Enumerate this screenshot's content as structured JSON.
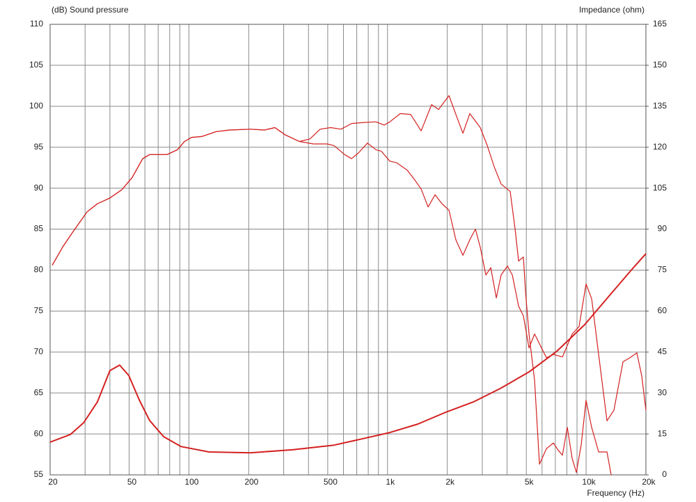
{
  "chart_data": {
    "type": "line",
    "xscale": "log",
    "grid": true,
    "y_label": "(dB)  Sound pressure",
    "y2_label": "Impedance  (ohm)",
    "x_label": "Frequency  (Hz)",
    "xlim": [
      20,
      20000
    ],
    "xticks": [
      20,
      50,
      100,
      200,
      500,
      {
        "value": 1000,
        "label": "1k"
      },
      {
        "value": 2000,
        "label": "2k"
      },
      {
        "value": 5000,
        "label": "5k"
      },
      {
        "value": 10000,
        "label": "10k"
      },
      {
        "value": 20000,
        "label": "20k"
      }
    ],
    "xminor": [
      30,
      40,
      60,
      70,
      80,
      90,
      300,
      400,
      600,
      700,
      800,
      900,
      3000,
      4000,
      6000,
      7000,
      8000,
      9000
    ],
    "ylim": [
      55,
      110
    ],
    "yticks": [
      55,
      60,
      65,
      70,
      75,
      80,
      85,
      90,
      95,
      100,
      105,
      110
    ],
    "y2lim": [
      0,
      165
    ],
    "y2ticks": [
      0,
      15,
      30,
      45,
      60,
      75,
      90,
      105,
      120,
      135,
      150,
      165
    ],
    "series": [
      {
        "color": "#d42020",
        "x": [
          20.5,
          23.1,
          26.1,
          30.7,
          34.6,
          40,
          45.9,
          51.8,
          58.5,
          63.4,
          77.6,
          87.6,
          95,
          103,
          116,
          137,
          160,
          204,
          240,
          271,
          306,
          360,
          406,
          458,
          517,
          584,
          659,
          744,
          874,
          963,
          1027,
          1159,
          1308,
          1477,
          1667,
          1807,
          2039,
          2210,
          2396,
          2597,
          2931,
          3178,
          3445,
          3734,
          4147,
          4389,
          4570,
          4834,
          4954,
          5158,
          5504,
          5824,
          6311,
          6843,
          7239,
          7598,
          8041,
          8507,
          8928,
          9450,
          9994,
          10666,
          11562,
          12739,
          13369
        ],
        "values": [
          80.6,
          82.8,
          84.7,
          87.1,
          88.1,
          88.8,
          89.8,
          91.3,
          93.6,
          94.1,
          94.1,
          94.7,
          95.7,
          96.2,
          96.3,
          96.9,
          97.1,
          97.2,
          97.1,
          97.4,
          96.5,
          95.7,
          96.0,
          97.2,
          97.4,
          97.2,
          97.9,
          98.0,
          98.1,
          97.7,
          98.1,
          99.1,
          99.0,
          97.0,
          100.2,
          99.6,
          101.3,
          99.0,
          96.7,
          99.1,
          97.4,
          95.2,
          92.6,
          90.5,
          89.6,
          85.0,
          81.1,
          81.6,
          77.3,
          72.2,
          66.5,
          56.3,
          58.2,
          58.9,
          58.0,
          57.4,
          60.8,
          57.0,
          55.3,
          58.7,
          64.1,
          60.8,
          57.8,
          57.8,
          55
        ]
      },
      {
        "color": "#d42020",
        "x": [
          20.5,
          23.1,
          26.1,
          30.7,
          34.6,
          40,
          45.9,
          51.8,
          58.5,
          63.4,
          77.6,
          87.6,
          95,
          103,
          116,
          137,
          160,
          204,
          240,
          271,
          306,
          360,
          423,
          497,
          538,
          608,
          659,
          714,
          793,
          874,
          932,
          1027,
          1113,
          1257,
          1362,
          1477,
          1601,
          1735,
          1880,
          2039,
          2210,
          2396,
          2597,
          2771,
          2931,
          3128,
          3309,
          3530,
          3734,
          4016,
          4250,
          4570,
          4834,
          5158,
          5504,
          5824,
          6311,
          6843,
          7598,
          8507,
          9220,
          9994,
          10666,
          11562,
          12739,
          13808,
          15336,
          16622,
          18015,
          19060,
          20000
        ],
        "values": [
          80.6,
          82.8,
          84.7,
          87.1,
          88.1,
          88.8,
          89.8,
          91.3,
          93.6,
          94.1,
          94.1,
          94.7,
          95.7,
          96.2,
          96.3,
          96.9,
          97.1,
          97.2,
          97.1,
          97.4,
          96.5,
          95.7,
          95.4,
          95.4,
          95.2,
          94.1,
          93.6,
          94.3,
          95.5,
          94.7,
          94.5,
          93.3,
          93.1,
          92.2,
          91.1,
          89.9,
          87.7,
          89.2,
          88.1,
          87.3,
          83.7,
          81.8,
          83.7,
          85.0,
          82.8,
          79.4,
          80.3,
          76.6,
          79.4,
          80.5,
          79.4,
          75.6,
          74.4,
          70.5,
          72.2,
          71.0,
          69.3,
          69.7,
          69.4,
          72.2,
          73.1,
          78.3,
          76.5,
          69.7,
          61.6,
          62.9,
          68.8,
          69.3,
          69.9,
          67.1,
          62.9
        ]
      },
      {
        "color": "#d42020",
        "axis": "y2",
        "x": [
          20,
          25.3,
          29.5,
          34.6,
          40,
          44.8,
          49.8,
          56.2,
          63.4,
          74.6,
          91.2,
          126,
          204,
          332,
          538,
          744,
          1027,
          1418,
          1958,
          2705,
          3734,
          5158,
          7123,
          9834,
          13585,
          17306,
          20000
        ],
        "values": [
          12.0,
          14.8,
          19.1,
          26.7,
          38.2,
          40.2,
          36.4,
          27.5,
          19.9,
          14.0,
          10.4,
          8.4,
          8.1,
          9.2,
          10.9,
          13.2,
          15.5,
          18.6,
          22.9,
          26.7,
          31.8,
          37.7,
          45.3,
          55.0,
          67.0,
          75.9,
          81.0
        ]
      }
    ]
  }
}
